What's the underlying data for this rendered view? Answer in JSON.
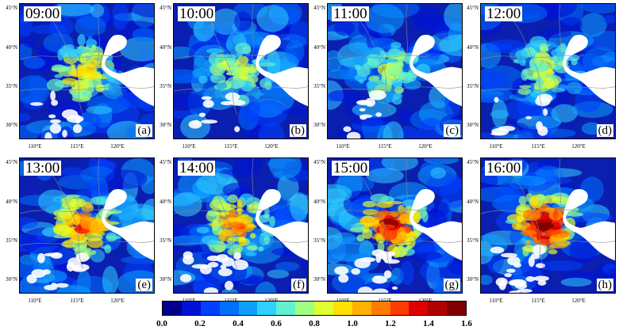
{
  "panels": [
    {
      "time": "09:00",
      "letter": "(a)",
      "level": 0.45
    },
    {
      "time": "10:00",
      "letter": "(b)",
      "level": 0.3
    },
    {
      "time": "11:00",
      "letter": "(c)",
      "level": 0.3
    },
    {
      "time": "12:00",
      "letter": "(d)",
      "level": 0.35
    },
    {
      "time": "13:00",
      "letter": "(e)",
      "level": 0.7
    },
    {
      "time": "14:00",
      "letter": "(f)",
      "level": 0.65
    },
    {
      "time": "15:00",
      "letter": "(g)",
      "level": 0.85
    },
    {
      "time": "16:00",
      "letter": "(h)",
      "level": 1.0
    }
  ],
  "lat_labels": [
    "45°N",
    "40°N",
    "35°N",
    "30°N"
  ],
  "lon_labels": [
    "110°E",
    "115°E",
    "120°E"
  ],
  "colorbar": {
    "ticks": [
      "0.0",
      "0.2",
      "0.4",
      "0.6",
      "0.8",
      "1.0",
      "1.2",
      "1.4",
      "1.6"
    ],
    "colors": [
      "#00008f",
      "#0012d8",
      "#0040ff",
      "#0070ff",
      "#0ea0ff",
      "#30d0ff",
      "#60f0d0",
      "#a0ff80",
      "#e0ff30",
      "#ffe000",
      "#ffb000",
      "#ff7a00",
      "#ff3c00",
      "#e00000",
      "#b00000",
      "#800000"
    ]
  }
}
